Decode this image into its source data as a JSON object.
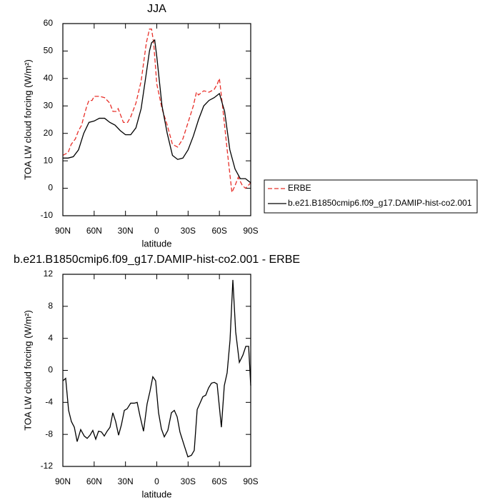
{
  "chart_data": [
    {
      "type": "line",
      "title": "JJA",
      "xlabel": "latitude",
      "ylabel": "TOA LW cloud forcing (W/m²)",
      "xlim": [
        90,
        -90
      ],
      "xticks": [
        {
          "value": 90,
          "label": "90N"
        },
        {
          "value": 60,
          "label": "60N"
        },
        {
          "value": 30,
          "label": "30N"
        },
        0,
        {
          "value": -30,
          "label": "30S"
        },
        {
          "value": -60,
          "label": "60S"
        },
        {
          "value": -90,
          "label": "90S"
        }
      ],
      "ylim": [
        -10,
        60
      ],
      "yticks": [
        -10,
        0,
        10,
        20,
        30,
        40,
        50,
        60
      ],
      "legend": "right",
      "series": [
        {
          "name": "ERBE",
          "color": "#e8302a",
          "linestyle": "dashed",
          "x": [
            90,
            85,
            82,
            78,
            75,
            72,
            70,
            67,
            65,
            62,
            60,
            55,
            50,
            45,
            42,
            39,
            37,
            35,
            32,
            28,
            25,
            20,
            15,
            10,
            7,
            5,
            3,
            0,
            -5,
            -10,
            -15,
            -20,
            -25,
            -30,
            -35,
            -38,
            -40,
            -45,
            -50,
            -55,
            -58,
            -60,
            -63,
            -68,
            -72,
            -75,
            -78,
            -82,
            -85,
            -90
          ],
          "values": [
            12,
            13,
            16,
            18,
            21,
            23,
            26,
            30,
            32,
            32,
            33.5,
            33.5,
            33,
            31,
            28,
            28,
            29,
            27,
            24,
            24,
            26,
            31,
            39,
            53,
            58,
            58,
            53,
            38,
            29,
            23,
            16,
            15,
            18,
            24,
            30,
            35,
            34,
            35.5,
            35,
            36,
            38,
            40,
            30,
            12,
            -1.5,
            1,
            4,
            1,
            0,
            2
          ]
        },
        {
          "name": "b.e21.B1850cmip6.f09_g17.DAMIP-hist-co2.001",
          "color": "#000000",
          "linestyle": "solid",
          "x": [
            90,
            85,
            80,
            75,
            70,
            65,
            60,
            55,
            50,
            45,
            40,
            35,
            30,
            25,
            20,
            15,
            10,
            7,
            5,
            2,
            0,
            -5,
            -10,
            -15,
            -20,
            -25,
            -30,
            -35,
            -40,
            -45,
            -50,
            -55,
            -60,
            -65,
            -70,
            -75,
            -80,
            -85,
            -90
          ],
          "values": [
            11,
            11,
            11.5,
            14,
            20,
            24,
            24.5,
            25.5,
            25.5,
            24,
            23,
            21,
            19.5,
            19.5,
            22,
            29,
            42,
            50,
            53,
            54,
            48,
            30,
            20,
            12,
            10.5,
            11,
            14,
            19,
            25,
            30,
            32,
            33,
            34.5,
            28,
            14,
            7,
            3.5,
            3.5,
            2
          ]
        }
      ]
    },
    {
      "type": "line",
      "title": "b.e21.B1850cmip6.f09_g17.DAMIP-hist-co2.001 - ERBE",
      "xlabel": "latitude",
      "ylabel": "TOA LW cloud forcing (W/m²)",
      "xlim": [
        90,
        -90
      ],
      "xticks": [
        {
          "value": 90,
          "label": "90N"
        },
        {
          "value": 60,
          "label": "60N"
        },
        {
          "value": 30,
          "label": "30N"
        },
        0,
        {
          "value": -30,
          "label": "30S"
        },
        {
          "value": -60,
          "label": "60S"
        },
        {
          "value": -90,
          "label": "90S"
        }
      ],
      "ylim": [
        -12,
        12
      ],
      "yticks": [
        -12,
        -8,
        -4,
        0,
        4,
        8,
        12
      ],
      "series": [
        {
          "color": "#000000",
          "linestyle": "solid",
          "x": [
            90,
            87.3,
            84.5,
            81.8,
            79,
            76.3,
            72.9,
            69.5,
            66.7,
            64,
            61.3,
            58.5,
            55.8,
            53,
            50.3,
            47.6,
            44.8,
            42.1,
            39.4,
            36.6,
            33.9,
            31.1,
            28.4,
            25,
            21.6,
            18.8,
            16.1,
            12.7,
            9.3,
            6.5,
            3.8,
            1.1,
            -1.7,
            -4.4,
            -7.2,
            -10.6,
            -14,
            -16.8,
            -19.5,
            -22.2,
            -26.3,
            -29.8,
            -33.2,
            -35.9,
            -38.7,
            -41.4,
            -44.1,
            -46.9,
            -49.6,
            -52.4,
            -55.1,
            -57.8,
            -61.9,
            -64.7,
            -67.4,
            -70.2,
            -72.9,
            -75.6,
            -79.1,
            -82.5,
            -85.3,
            -88,
            -90
          ],
          "values": [
            -1.3,
            -1,
            -5,
            -6.4,
            -7.1,
            -8.9,
            -7.4,
            -8.2,
            -8.5,
            -8.1,
            -7.5,
            -8.6,
            -7.6,
            -7.7,
            -8.2,
            -7.6,
            -7.1,
            -5.3,
            -6.4,
            -8.1,
            -6.8,
            -5,
            -4.8,
            -4.1,
            -4.1,
            -4,
            -5.7,
            -7.6,
            -4.2,
            -2.6,
            -0.8,
            -1.3,
            -5.3,
            -7.3,
            -8.3,
            -7.5,
            -5.3,
            -5,
            -5.8,
            -7.7,
            -9.4,
            -10.8,
            -10.6,
            -10,
            -4.9,
            -4.1,
            -3.3,
            -3.1,
            -2.2,
            -1.6,
            -1.5,
            -1.7,
            -7.1,
            -1.9,
            -0.3,
            3.8,
            11.3,
            4.8,
            1,
            1.9,
            3,
            3,
            -1.9
          ]
        }
      ]
    }
  ]
}
